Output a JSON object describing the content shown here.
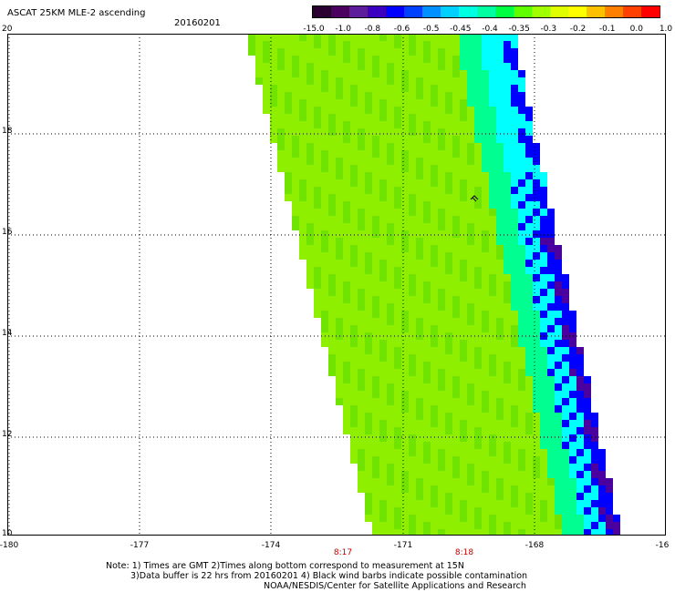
{
  "header": {
    "title": "ASCAT 25KM MLE-2 ascending",
    "date": "20160201"
  },
  "colorbar": {
    "tick_labels": [
      "-15.0",
      "-1.0",
      "-0.8",
      "-0.6",
      "-0.5",
      "-0.45",
      "-0.4",
      "-0.35",
      "-0.3",
      "-0.2",
      "-0.1",
      "0.0",
      "1.0"
    ],
    "colors": [
      "#2a0030",
      "#4b0060",
      "#5c1c9c",
      "#3b00c0",
      "#0000ff",
      "#0040ff",
      "#0090ff",
      "#00d0ff",
      "#00ffe0",
      "#00ffa0",
      "#00ff40",
      "#60ff00",
      "#a0ff00",
      "#e0ff00",
      "#ffff00",
      "#ffc000",
      "#ff8000",
      "#ff4000",
      "#ff0000"
    ]
  },
  "axes": {
    "lat_labels": [
      "20",
      "18",
      "16",
      "14",
      "12",
      "10"
    ],
    "lon_labels": [
      "-180",
      "-177",
      "-174",
      "-171",
      "-168",
      "-16"
    ],
    "time_labels": [
      "8:17",
      "8:18"
    ]
  },
  "map": {
    "field_colors": {
      "main": "#8ef000",
      "main_dark": "#70e400",
      "transition": "#00ff90",
      "edge": "#00ffff",
      "deep": "#0000ff",
      "extreme": "#4b00a0"
    },
    "wind_barb_marker": "wind-barb-icon"
  },
  "notes": {
    "line1": "Note: 1) Times are GMT 2)Times along bottom correspond to measurement at 15N",
    "line2": "3)Data buffer is 22 hrs from 20160201 4) Black wind barbs indicate possible contamination",
    "line3": "NOAA/NESDIS/Center for Satellite Applications and Research"
  }
}
